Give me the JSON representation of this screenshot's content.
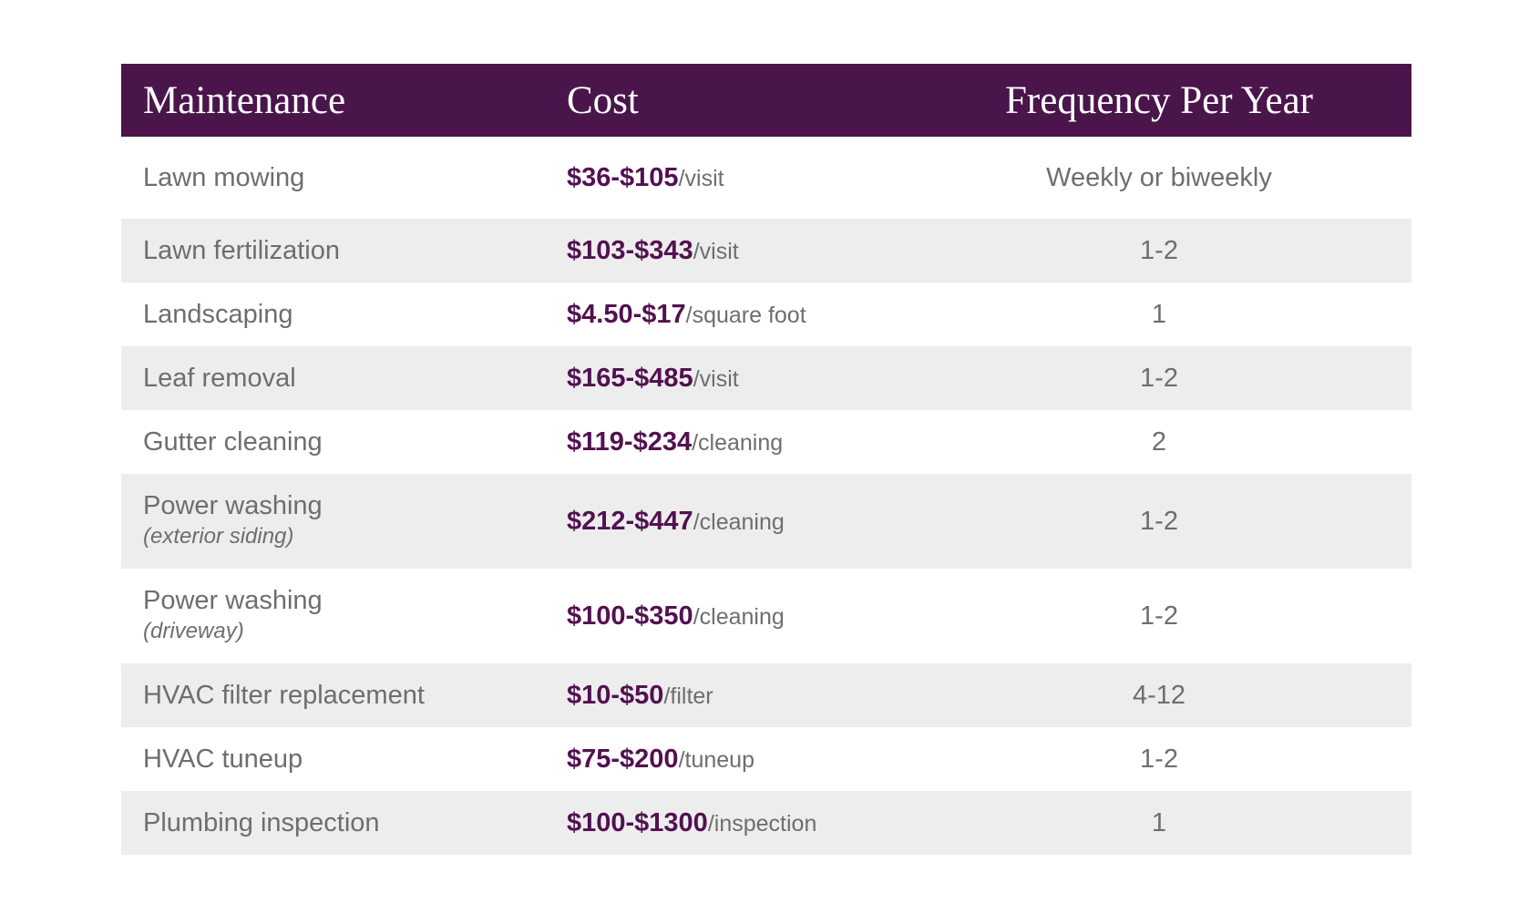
{
  "colors": {
    "header_bg": "#4a154b",
    "header_text": "#ffffff",
    "price_accent": "#531150",
    "body_text": "#6d6e70",
    "alt_row_bg": "#ededee",
    "page_bg": "#ffffff"
  },
  "table": {
    "columns": [
      {
        "label": "Maintenance"
      },
      {
        "label": "Cost"
      },
      {
        "label": "Frequency Per Year"
      }
    ],
    "rows": [
      {
        "maintenance": "Lawn mowing",
        "sub": "",
        "cost_range": "$36-$105",
        "cost_unit": "/visit",
        "frequency": "Weekly or biweekly"
      },
      {
        "maintenance": "Lawn fertilization",
        "sub": "",
        "cost_range": "$103-$343",
        "cost_unit": "/visit",
        "frequency": "1-2"
      },
      {
        "maintenance": "Landscaping",
        "sub": "",
        "cost_range": "$4.50-$17",
        "cost_unit": "/square foot",
        "frequency": "1"
      },
      {
        "maintenance": "Leaf removal",
        "sub": "",
        "cost_range": "$165-$485",
        "cost_unit": "/visit",
        "frequency": "1-2"
      },
      {
        "maintenance": "Gutter cleaning",
        "sub": "",
        "cost_range": "$119-$234",
        "cost_unit": "/cleaning",
        "frequency": "2"
      },
      {
        "maintenance": "Power washing",
        "sub": "(exterior siding)",
        "cost_range": "$212-$447",
        "cost_unit": "/cleaning",
        "frequency": "1-2"
      },
      {
        "maintenance": "Power washing",
        "sub": "(driveway)",
        "cost_range": "$100-$350",
        "cost_unit": "/cleaning",
        "frequency": "1-2"
      },
      {
        "maintenance": "HVAC filter replacement",
        "sub": "",
        "cost_range": "$10-$50",
        "cost_unit": "/filter",
        "frequency": "4-12"
      },
      {
        "maintenance": "HVAC tuneup",
        "sub": "",
        "cost_range": "$75-$200",
        "cost_unit": "/tuneup",
        "frequency": "1-2"
      },
      {
        "maintenance": "Plumbing inspection",
        "sub": "",
        "cost_range": "$100-$1300",
        "cost_unit": "/inspection",
        "frequency": "1"
      }
    ]
  },
  "chart_data": {
    "type": "table",
    "title": "",
    "columns": [
      "Maintenance",
      "Cost",
      "Frequency Per Year"
    ],
    "rows": [
      [
        "Lawn mowing",
        "$36-$105/visit",
        "Weekly or biweekly"
      ],
      [
        "Lawn fertilization",
        "$103-$343/visit",
        "1-2"
      ],
      [
        "Landscaping",
        "$4.50-$17/square foot",
        "1"
      ],
      [
        "Leaf removal",
        "$165-$485/visit",
        "1-2"
      ],
      [
        "Gutter cleaning",
        "$119-$234/cleaning",
        "2"
      ],
      [
        "Power washing (exterior siding)",
        "$212-$447/cleaning",
        "1-2"
      ],
      [
        "Power washing (driveway)",
        "$100-$350/cleaning",
        "1-2"
      ],
      [
        "HVAC filter replacement",
        "$10-$50/filter",
        "4-12"
      ],
      [
        "HVAC tuneup",
        "$75-$200/tuneup",
        "1-2"
      ],
      [
        "Plumbing inspection",
        "$100-$1300/inspection",
        "1"
      ]
    ],
    "layout": {
      "header_position": "top",
      "alternating_row_shading": true
    }
  }
}
